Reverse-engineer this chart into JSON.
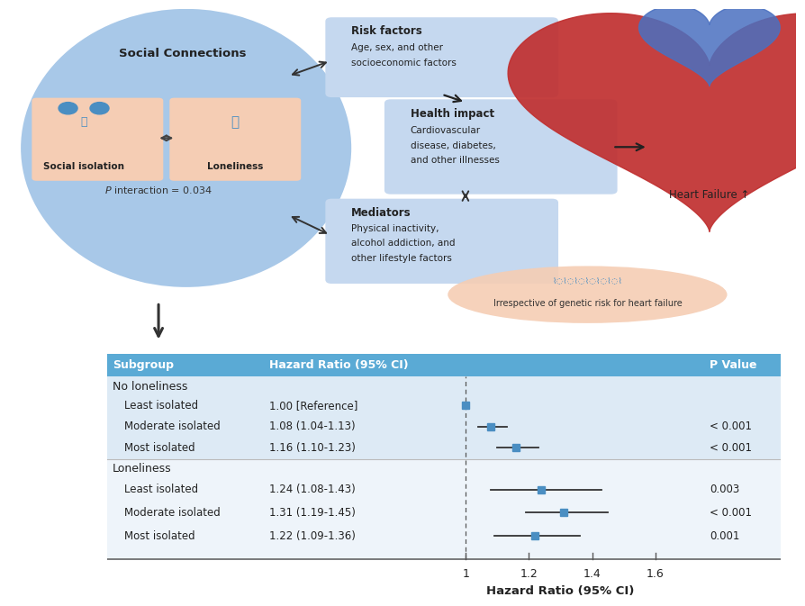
{
  "bg_color": "#ffffff",
  "circle_color": "#a8c8e8",
  "box_color": "#c5d8ef",
  "salmon_box_color": "#f5cdb4",
  "salmon_oval_color": "#f5cdb4",
  "header_color": "#5aaad5",
  "table_bg_light": "#ddeaf5",
  "table_bg_white": "#eef4fa",
  "forest_point_color": "#4a8ec2",
  "forest_line_color": "#333333",
  "dashed_line_color": "#555555",
  "groups": [
    {
      "header": "No loneliness",
      "rows": [
        {
          "label": "Least isolated",
          "hr_text": "1.00 [Reference]",
          "hr": 1.0,
          "ci_lo": 1.0,
          "ci_hi": 1.0,
          "p": "",
          "is_ref": true
        },
        {
          "label": "Moderate isolated",
          "hr_text": "1.08 (1.04-1.13)",
          "hr": 1.08,
          "ci_lo": 1.04,
          "ci_hi": 1.13,
          "p": "< 0.001",
          "is_ref": false
        },
        {
          "label": "Most isolated",
          "hr_text": "1.16 (1.10-1.23)",
          "hr": 1.16,
          "ci_lo": 1.1,
          "ci_hi": 1.23,
          "p": "< 0.001",
          "is_ref": false
        }
      ]
    },
    {
      "header": "Loneliness",
      "rows": [
        {
          "label": "Least isolated",
          "hr_text": "1.24 (1.08-1.43)",
          "hr": 1.24,
          "ci_lo": 1.08,
          "ci_hi": 1.43,
          "p": "0.003",
          "is_ref": false
        },
        {
          "label": "Moderate isolated",
          "hr_text": "1.31 (1.19-1.45)",
          "hr": 1.31,
          "ci_lo": 1.19,
          "ci_hi": 1.45,
          "p": "< 0.001",
          "is_ref": false
        },
        {
          "label": "Most isolated",
          "hr_text": "1.22 (1.09-1.36)",
          "hr": 1.22,
          "ci_lo": 1.09,
          "ci_hi": 1.36,
          "p": "0.001",
          "is_ref": false
        }
      ]
    }
  ],
  "x_axis_ticks": [
    1.0,
    1.2,
    1.4,
    1.6
  ],
  "x_axis_label": "Hazard Ratio (95% CI)",
  "x_min": 0.93,
  "x_max": 1.73,
  "ref_line_x": 1.0
}
